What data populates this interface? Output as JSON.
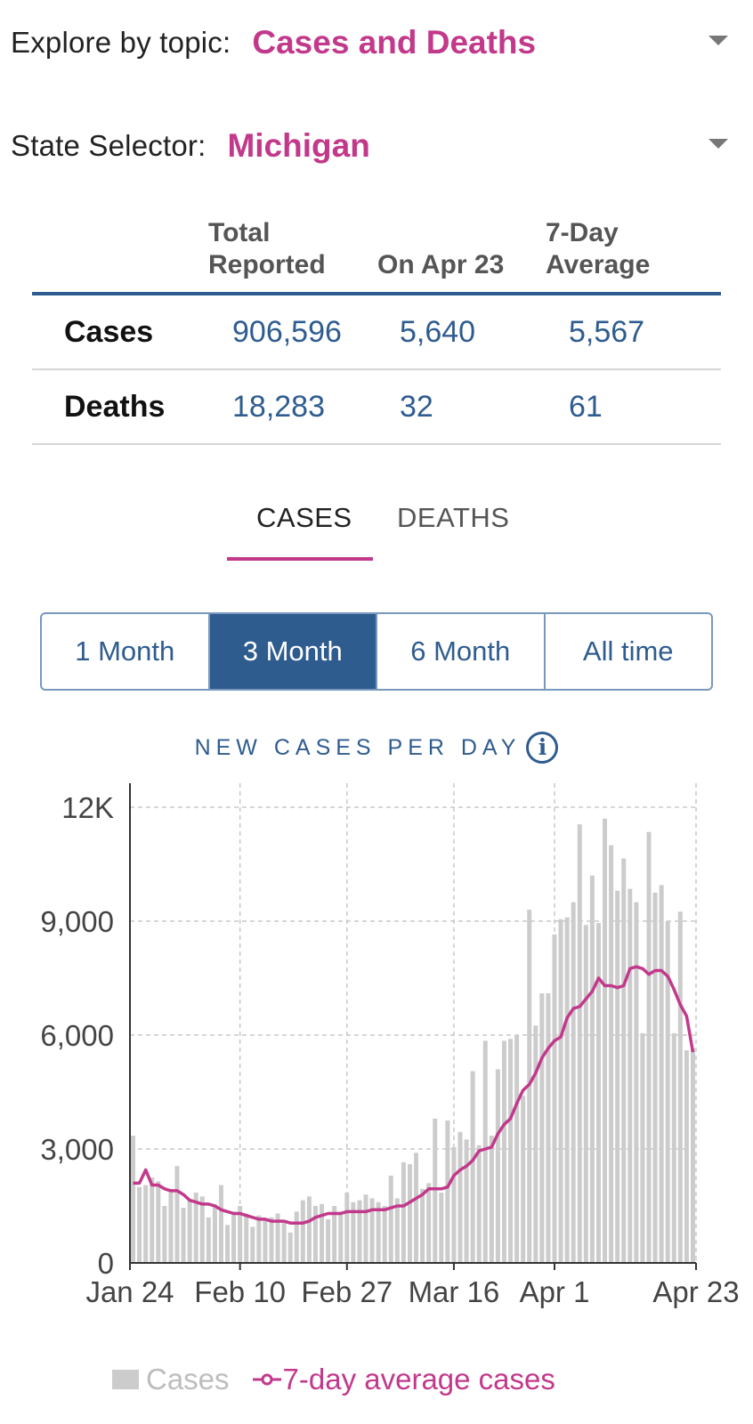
{
  "topic": {
    "label": "Explore by topic:",
    "value": "Cases and Deaths"
  },
  "state": {
    "label": "State Selector:",
    "value": "Michigan"
  },
  "stats": {
    "headers": [
      "Total\nReported",
      "On Apr 23",
      "7-Day\nAverage"
    ],
    "rows": [
      {
        "label": "Cases",
        "total": "906,596",
        "on_date": "5,640",
        "avg": "5,567"
      },
      {
        "label": "Deaths",
        "total": "18,283",
        "on_date": "32",
        "avg": "61"
      }
    ]
  },
  "tabs": {
    "cases": "CASES",
    "deaths": "DEATHS",
    "active": "cases"
  },
  "range": {
    "options": [
      "1 Month",
      "3 Month",
      "6 Month",
      "All time"
    ],
    "selected": "3 Month"
  },
  "chart_title": "NEW CASES PER DAY",
  "icons": {
    "info": "info-icon",
    "dropdown": "chevron-down-icon"
  },
  "colors": {
    "accent": "#c2398b",
    "primary": "#2f5c8f",
    "bar": "#cccccc"
  },
  "legend": {
    "cases": "Cases",
    "avg": "7-day average cases"
  },
  "chart_data": {
    "type": "bar",
    "x_tick_labels": [
      "Jan 24",
      "Feb 10",
      "Feb 27",
      "Mar 16",
      "Apr 1",
      "Apr 23"
    ],
    "y_tick_labels": [
      "0",
      "3,000",
      "6,000",
      "9,000",
      "12K"
    ],
    "ylim": [
      0,
      12000
    ],
    "grid": true,
    "legend_placement": "bottom",
    "series": [
      {
        "name": "Cases",
        "type": "bar",
        "values": [
          3350,
          2000,
          2050,
          2250,
          2150,
          1500,
          1950,
          2550,
          1450,
          1650,
          1850,
          1750,
          1200,
          1550,
          2050,
          1000,
          1350,
          1500,
          1300,
          950,
          1250,
          1150,
          1200,
          1300,
          1100,
          800,
          1350,
          1650,
          1750,
          1500,
          1550,
          1150,
          1500,
          1350,
          1850,
          1600,
          1650,
          1800,
          1700,
          1600,
          1500,
          2300,
          1700,
          2650,
          2600,
          2900,
          1950,
          2100,
          3800,
          1850,
          3750,
          3050,
          3450,
          3250,
          5050,
          3100,
          5850,
          3350,
          5100,
          5850,
          5900,
          6000,
          4400,
          9300,
          6250,
          7100,
          7100,
          8650,
          9050,
          9100,
          9500,
          11550,
          8900,
          10200,
          8950,
          11700,
          11000,
          9800,
          10650,
          9850,
          9500,
          6050,
          11350,
          9750,
          9950,
          9000,
          6050,
          9250,
          5600,
          5650
        ]
      },
      {
        "name": "7-day average cases",
        "type": "line",
        "values": [
          2100,
          2100,
          2450,
          2050,
          2050,
          1950,
          1900,
          1900,
          1800,
          1650,
          1600,
          1550,
          1550,
          1500,
          1400,
          1350,
          1300,
          1300,
          1250,
          1200,
          1150,
          1150,
          1100,
          1100,
          1100,
          1050,
          1050,
          1050,
          1100,
          1200,
          1250,
          1300,
          1300,
          1300,
          1350,
          1350,
          1350,
          1350,
          1400,
          1400,
          1400,
          1450,
          1500,
          1500,
          1600,
          1700,
          1800,
          1950,
          1950,
          1950,
          2000,
          2300,
          2450,
          2550,
          2700,
          2950,
          3000,
          3050,
          3400,
          3650,
          3800,
          4200,
          4550,
          4700,
          5000,
          5400,
          5650,
          5850,
          5950,
          6450,
          6700,
          6750,
          6950,
          7150,
          7500,
          7300,
          7300,
          7250,
          7300,
          7750,
          7800,
          7750,
          7600,
          7700,
          7700,
          7550,
          7200,
          6800,
          6500,
          5550
        ]
      }
    ]
  }
}
